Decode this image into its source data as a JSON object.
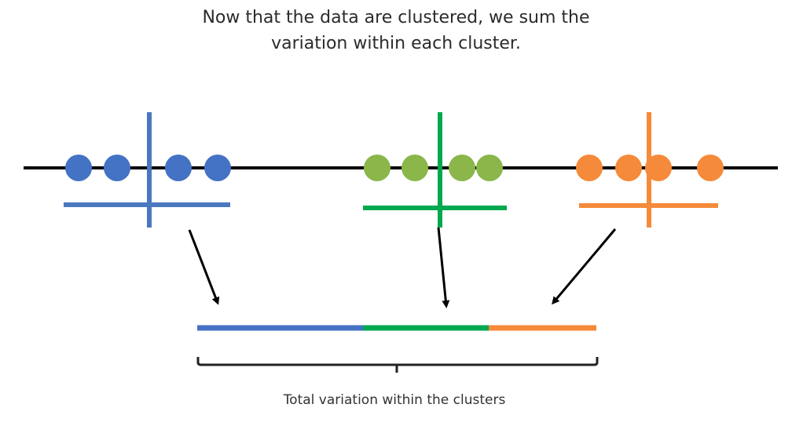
{
  "title": {
    "line1": "Now that the data are clustered, we sum the",
    "line2": "variation within each cluster."
  },
  "caption": "Total variation within the clusters",
  "colors": {
    "axis": "#000000",
    "blue_points": "#4472C4",
    "blue_lines": "#4A78BE",
    "green_points": "#8AB64A",
    "green_lines": "#00A84F",
    "orange_points": "#F58A3A",
    "orange_lines": "#F58A3A"
  },
  "clusters": [
    {
      "name": "blue",
      "points": 4
    },
    {
      "name": "green",
      "points": 4
    },
    {
      "name": "orange",
      "points": 4
    }
  ]
}
